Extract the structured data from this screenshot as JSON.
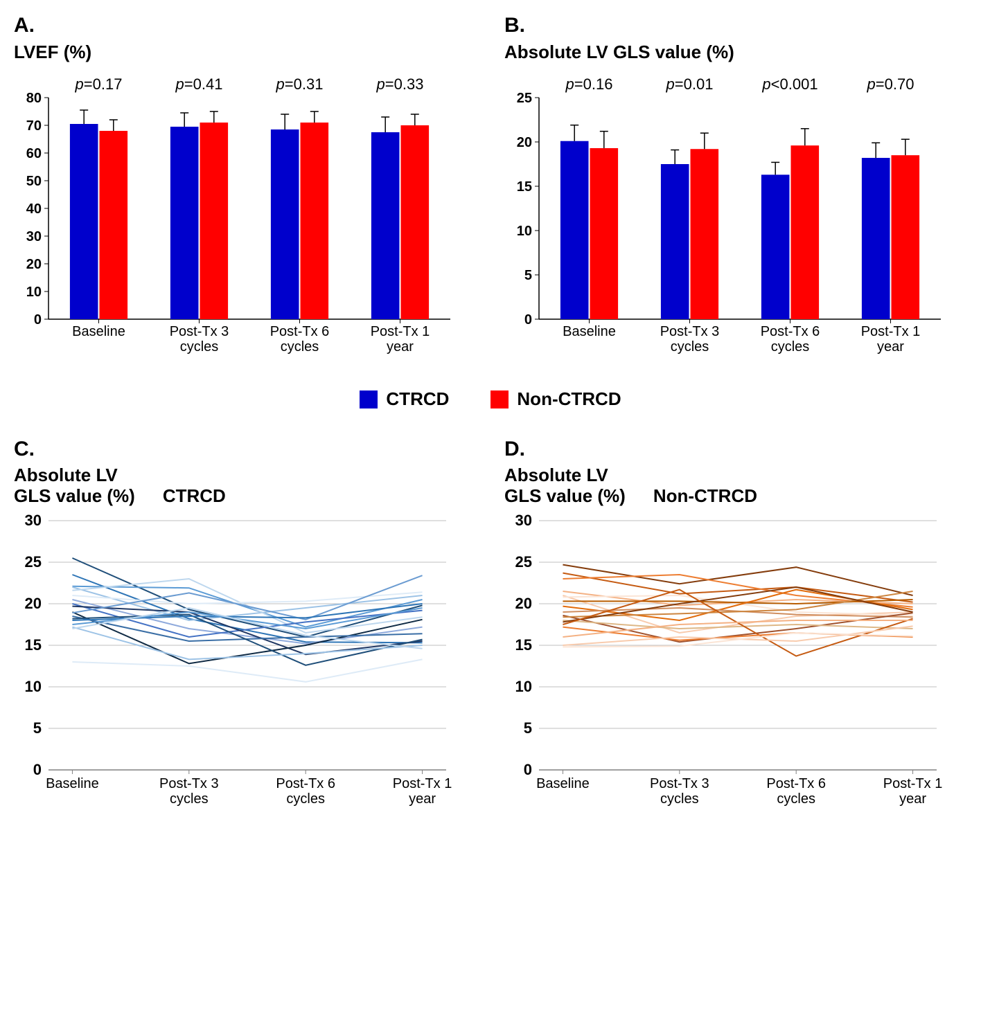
{
  "background_color": "#ffffff",
  "panel_letter_fontsize": 30,
  "title_fontsize": 26,
  "tick_fontsize": 20,
  "legend": {
    "items": [
      {
        "label": "CTRCD",
        "color": "#0000cc"
      },
      {
        "label": "Non-CTRCD",
        "color": "#ff0000"
      }
    ]
  },
  "panel_a": {
    "letter": "A.",
    "title": "LVEF (%)",
    "type": "bar",
    "ylim": [
      0,
      80
    ],
    "ytick_step": 10,
    "bar_colors": [
      "#0000cc",
      "#ff0000"
    ],
    "error_color": "#000000",
    "categories": [
      "Baseline",
      "Post-Tx 3 cycles",
      "Post-Tx 6 cycles",
      "Post-Tx 1 year"
    ],
    "p_values": [
      "p=0.17",
      "p=0.41",
      "p=0.31",
      "p=0.33"
    ],
    "series": [
      {
        "name": "CTRCD",
        "values": [
          70.5,
          69.5,
          68.5,
          67.5
        ],
        "errors": [
          5.0,
          5.0,
          5.5,
          5.5
        ]
      },
      {
        "name": "Non-CTRCD",
        "values": [
          68.0,
          71.0,
          71.0,
          70.0
        ],
        "errors": [
          4.0,
          4.0,
          4.0,
          4.0
        ]
      }
    ],
    "plot_bg": "#ffffff",
    "border_color": "#000000"
  },
  "panel_b": {
    "letter": "B.",
    "title": "Absolute LV GLS value (%)",
    "type": "bar",
    "ylim": [
      0,
      25
    ],
    "ytick_step": 5,
    "bar_colors": [
      "#0000cc",
      "#ff0000"
    ],
    "error_color": "#000000",
    "categories": [
      "Baseline",
      "Post-Tx 3 cycles",
      "Post-Tx 6 cycles",
      "Post-Tx 1 year"
    ],
    "p_values": [
      "p=0.16",
      "p=0.01",
      "p<0.001",
      "p=0.70"
    ],
    "series": [
      {
        "name": "CTRCD",
        "values": [
          20.1,
          17.5,
          16.3,
          18.2
        ],
        "errors": [
          1.8,
          1.6,
          1.4,
          1.7
        ]
      },
      {
        "name": "Non-CTRCD",
        "values": [
          19.3,
          19.2,
          19.6,
          18.5
        ],
        "errors": [
          1.9,
          1.8,
          1.9,
          1.8
        ]
      }
    ],
    "plot_bg": "#ffffff",
    "border_color": "#000000"
  },
  "panel_c": {
    "letter": "C.",
    "title_line1": "Absolute LV",
    "title_line2": "GLS value (%)",
    "group_label": "CTRCD",
    "type": "line",
    "ylim": [
      0,
      30
    ],
    "ytick_step": 5,
    "categories": [
      "Baseline",
      "Post-Tx 3 cycles",
      "Post-Tx 6 cycles",
      "Post-Tx 1 year"
    ],
    "grid_color": "#bfbfbf",
    "line_palette": [
      "#1f4e79",
      "#2e75b6",
      "#5b9bd5",
      "#9dc3e6",
      "#bdd7ee",
      "#deebf7",
      "#8faadc",
      "#4472c4",
      "#203864",
      "#0f2a44",
      "#6a9bd1",
      "#3a6ea5"
    ],
    "line_width": 2.0,
    "lines": [
      [
        25.5,
        19.3,
        16.0,
        19.8
      ],
      [
        23.5,
        18.2,
        15.4,
        15.3
      ],
      [
        22.1,
        21.9,
        17.2,
        20.5
      ],
      [
        22.0,
        18.0,
        19.5,
        21.0
      ],
      [
        21.6,
        23.0,
        16.5,
        18.4
      ],
      [
        21.0,
        20.0,
        20.3,
        21.4
      ],
      [
        20.5,
        17.0,
        15.2,
        17.2
      ],
      [
        20.0,
        16.0,
        17.8,
        19.2
      ],
      [
        19.7,
        19.0,
        13.9,
        15.5
      ],
      [
        19.0,
        12.8,
        15.0,
        18.1
      ],
      [
        18.9,
        21.3,
        18.1,
        23.4
      ],
      [
        18.5,
        15.5,
        16.0,
        16.4
      ],
      [
        18.2,
        18.7,
        12.6,
        15.7
      ],
      [
        18.0,
        18.5,
        18.3,
        20.0
      ],
      [
        17.5,
        19.0,
        17.0,
        19.5
      ],
      [
        17.2,
        13.3,
        14.0,
        15.0
      ],
      [
        17.0,
        19.5,
        16.2,
        14.6
      ],
      [
        13.0,
        12.5,
        10.6,
        13.3
      ]
    ]
  },
  "panel_d": {
    "letter": "D.",
    "title_line1": "Absolute LV",
    "title_line2": "GLS value (%)",
    "group_label": "Non-CTRCD",
    "type": "line",
    "ylim": [
      0,
      30
    ],
    "ytick_step": 5,
    "categories": [
      "Baseline",
      "Post-Tx 3 cycles",
      "Post-Tx 6 cycles",
      "Post-Tx 1 year"
    ],
    "grid_color": "#bfbfbf",
    "line_palette": [
      "#843c0c",
      "#c55a11",
      "#ed7d31",
      "#f4b183",
      "#f8cbad",
      "#fbe5d6",
      "#b85c00",
      "#e26b0a",
      "#d08e5f",
      "#a0522d",
      "#cd853f",
      "#deb887"
    ],
    "line_width": 2.0,
    "lines": [
      [
        24.7,
        22.4,
        24.4,
        21.0
      ],
      [
        23.7,
        21.2,
        22.0,
        20.2
      ],
      [
        23.0,
        23.5,
        21.0,
        19.6
      ],
      [
        21.5,
        19.8,
        20.5,
        20.0
      ],
      [
        21.0,
        16.5,
        18.5,
        19.0
      ],
      [
        20.8,
        21.0,
        19.0,
        18.6
      ],
      [
        20.3,
        20.3,
        20.0,
        20.5
      ],
      [
        19.7,
        18.0,
        21.7,
        19.3
      ],
      [
        19.0,
        19.5,
        18.7,
        18.4
      ],
      [
        18.6,
        15.4,
        17.0,
        18.9
      ],
      [
        18.4,
        18.8,
        19.3,
        21.5
      ],
      [
        18.0,
        17.0,
        17.5,
        17.0
      ],
      [
        17.8,
        20.0,
        22.0,
        19.0
      ],
      [
        17.5,
        21.7,
        13.7,
        18.2
      ],
      [
        17.2,
        15.6,
        16.5,
        16.0
      ],
      [
        16.0,
        17.5,
        18.0,
        18.0
      ],
      [
        15.0,
        16.0,
        15.5,
        17.3
      ],
      [
        14.8,
        14.9,
        16.5,
        16.1
      ]
    ]
  }
}
